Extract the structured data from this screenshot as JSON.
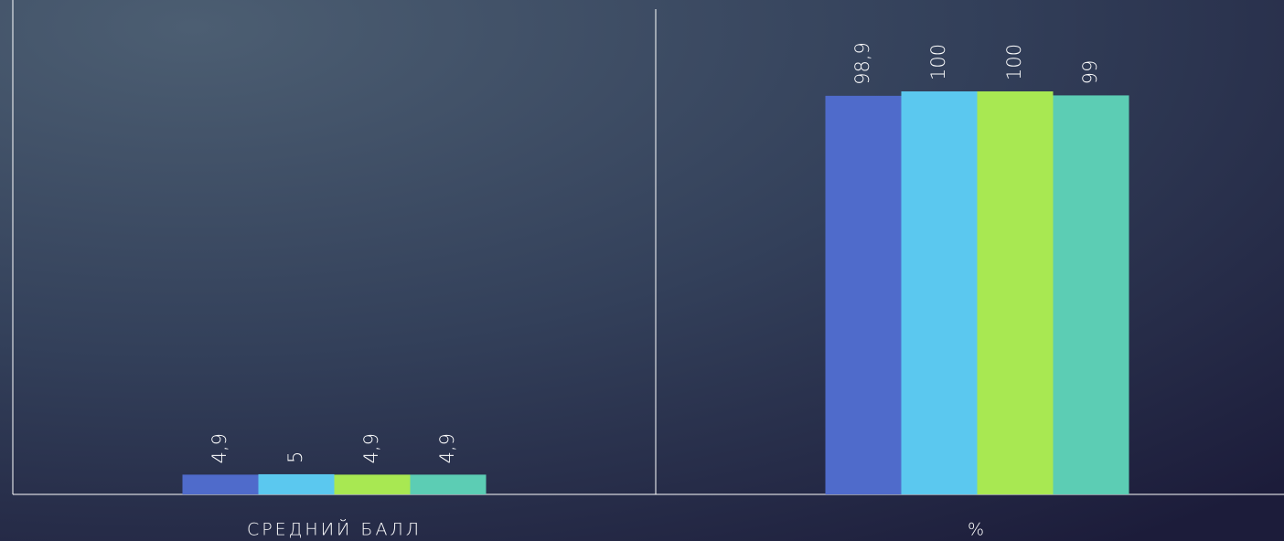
{
  "chart_data": {
    "type": "bar",
    "categories": [
      "СРЕДНИЙ БАЛЛ",
      "%"
    ],
    "series": [
      {
        "color": "#4f6bcb",
        "values": [
          4.9,
          98.9
        ],
        "value_labels": [
          "4,9",
          "98,9"
        ]
      },
      {
        "color": "#5bc8ef",
        "values": [
          5,
          100
        ],
        "value_labels": [
          "5",
          "100"
        ]
      },
      {
        "color": "#a8e852",
        "values": [
          4.9,
          100
        ],
        "value_labels": [
          "4,9",
          "100"
        ]
      },
      {
        "color": "#5ccdb4",
        "values": [
          4.9,
          99
        ],
        "value_labels": [
          "4,9",
          "99"
        ]
      }
    ],
    "ylim": [
      0,
      100
    ]
  }
}
